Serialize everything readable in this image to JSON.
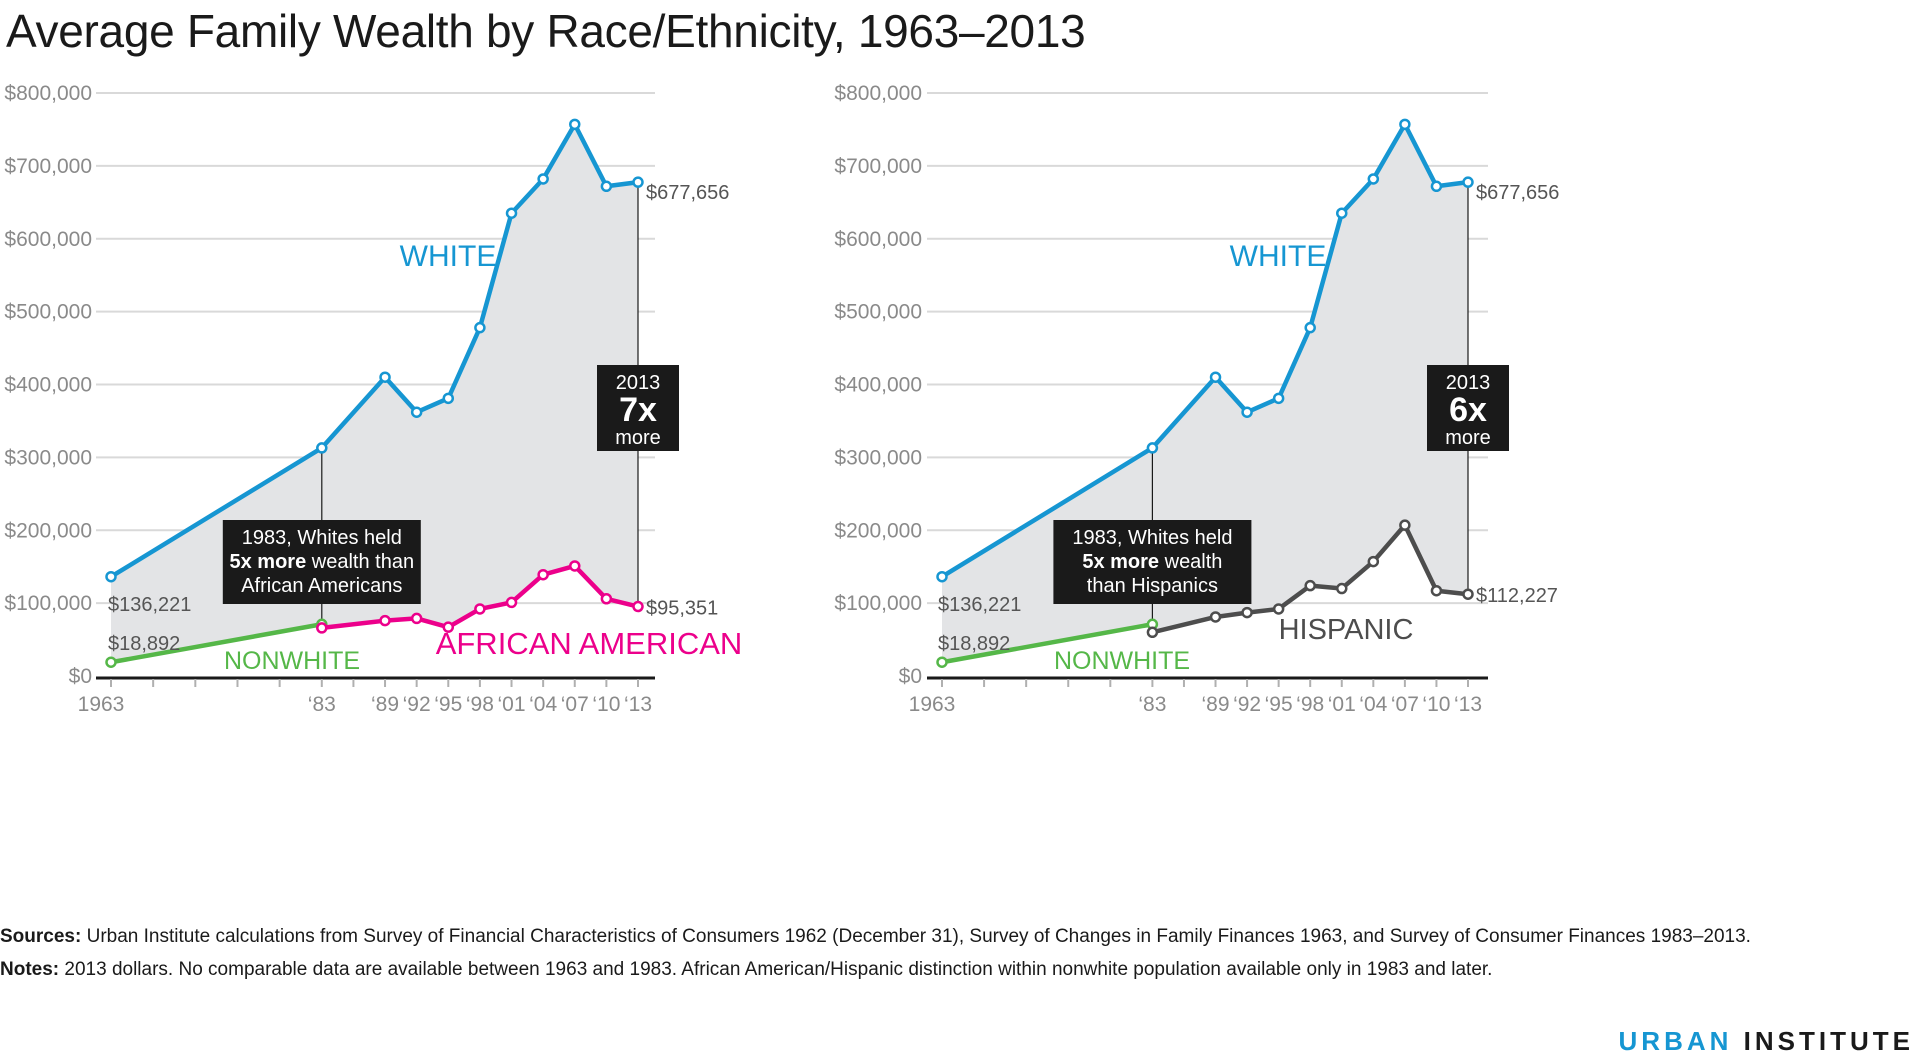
{
  "title": "Average Family Wealth by Race/Ethnicity, 1963–2013",
  "footer": {
    "sources_label": "Sources:",
    "sources_text": "Urban Institute calculations from Survey of Financial Characteristics of Consumers 1962 (December 31), Survey of Changes in Family Finances 1963, and Survey of Consumer Finances 1983–2013.",
    "notes_label": "Notes:",
    "notes_text": "2013 dollars. No comparable data are available between 1963 and 1983. African American/Hispanic distinction within nonwhite population available only in 1983 and later."
  },
  "brand": {
    "part1": "URBAN",
    "part2": "INSTITUTE"
  },
  "colors": {
    "white": "#1696d2",
    "african_american": "#ec008b",
    "hispanic": "#4d4d4d",
    "nonwhite": "#55b748",
    "fill": "#e3e4e6",
    "box": "#1a1a1a"
  },
  "chart_data": [
    {
      "type": "line",
      "xlim": [
        1963,
        2013
      ],
      "ylim": [
        0,
        800000
      ],
      "y_ticks": [
        0,
        100000,
        200000,
        300000,
        400000,
        500000,
        600000,
        700000,
        800000
      ],
      "y_tick_labels": [
        "$0",
        "$100,000",
        "$200,000",
        "$300,000",
        "$400,000",
        "$500,000",
        "$600,000",
        "$700,000",
        "$800,000"
      ],
      "x_ticks": [
        1963,
        1983,
        1989,
        1992,
        1995,
        1998,
        2001,
        2004,
        2007,
        2010,
        2013
      ],
      "x_tick_labels": [
        "1963",
        "‘83",
        "‘89",
        "‘92",
        "‘95",
        "‘98",
        "‘01",
        "‘04",
        "‘07",
        "‘10",
        "‘13"
      ],
      "series": [
        {
          "name": "WHITE",
          "color": "#1696d2",
          "x": [
            1963,
            1983,
            1989,
            1992,
            1995,
            1998,
            2001,
            2004,
            2007,
            2010,
            2013
          ],
          "y": [
            136221,
            313000,
            410000,
            362000,
            381000,
            478000,
            635000,
            682000,
            757000,
            672000,
            677656
          ]
        },
        {
          "name": "NONWHITE",
          "color": "#55b748",
          "x": [
            1963,
            1983
          ],
          "y": [
            18892,
            71000
          ]
        },
        {
          "name": "AFRICAN AMERICAN",
          "color": "#ec008b",
          "x": [
            1983,
            1989,
            1992,
            1995,
            1998,
            2001,
            2004,
            2007,
            2010,
            2013
          ],
          "y": [
            66000,
            76000,
            79000,
            67000,
            92000,
            101000,
            139000,
            151000,
            106000,
            95351
          ]
        }
      ],
      "value_labels": {
        "white_start": "$136,221",
        "white_end": "$677,656",
        "nonwhite_start": "$18,892",
        "group_end": "$95,351"
      },
      "callout_1983": [
        "1983, Whites held",
        "5x more",
        " wealth than",
        "African Americans"
      ],
      "callout_2013": {
        "year": "2013",
        "multiple": "7x",
        "word": "more"
      }
    },
    {
      "type": "line",
      "xlim": [
        1963,
        2013
      ],
      "ylim": [
        0,
        800000
      ],
      "y_ticks": [
        0,
        100000,
        200000,
        300000,
        400000,
        500000,
        600000,
        700000,
        800000
      ],
      "y_tick_labels": [
        "$0",
        "$100,000",
        "$200,000",
        "$300,000",
        "$400,000",
        "$500,000",
        "$600,000",
        "$700,000",
        "$800,000"
      ],
      "x_ticks": [
        1963,
        1983,
        1989,
        1992,
        1995,
        1998,
        2001,
        2004,
        2007,
        2010,
        2013
      ],
      "x_tick_labels": [
        "1963",
        "‘83",
        "‘89",
        "‘92",
        "‘95",
        "‘98",
        "‘01",
        "‘04",
        "‘07",
        "‘10",
        "‘13"
      ],
      "series": [
        {
          "name": "WHITE",
          "color": "#1696d2",
          "x": [
            1963,
            1983,
            1989,
            1992,
            1995,
            1998,
            2001,
            2004,
            2007,
            2010,
            2013
          ],
          "y": [
            136221,
            313000,
            410000,
            362000,
            381000,
            478000,
            635000,
            682000,
            757000,
            672000,
            677656
          ]
        },
        {
          "name": "NONWHITE",
          "color": "#55b748",
          "x": [
            1963,
            1983
          ],
          "y": [
            18892,
            71000
          ]
        },
        {
          "name": "HISPANIC",
          "color": "#4d4d4d",
          "x": [
            1983,
            1989,
            1992,
            1995,
            1998,
            2001,
            2004,
            2007,
            2010,
            2013
          ],
          "y": [
            60000,
            81000,
            87000,
            92000,
            124000,
            120000,
            157000,
            207000,
            117000,
            112227
          ]
        }
      ],
      "value_labels": {
        "white_start": "$136,221",
        "white_end": "$677,656",
        "nonwhite_start": "$18,892",
        "group_end": "$112,227"
      },
      "callout_1983": [
        "1983, Whites held",
        "5x more",
        " wealth",
        "than Hispanics"
      ],
      "callout_2013": {
        "year": "2013",
        "multiple": "6x",
        "word": "more"
      }
    }
  ]
}
